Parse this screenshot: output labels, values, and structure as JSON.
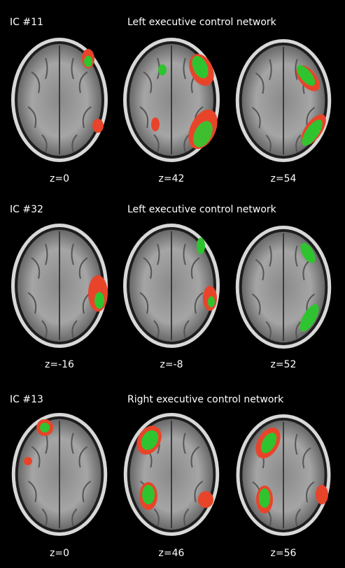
{
  "panels": [
    {
      "ic": "IC #11",
      "network": "Left executive control network",
      "slices": [
        "z=0",
        "z=42",
        "z=54"
      ]
    },
    {
      "ic": "IC #32",
      "network": "Left executive control network",
      "slices": [
        "z=-16",
        "z=-8",
        "z=52"
      ]
    },
    {
      "ic": "IC #13",
      "network": "Right executive control network",
      "slices": [
        "z=0",
        "z=46",
        "z=56"
      ]
    }
  ]
}
